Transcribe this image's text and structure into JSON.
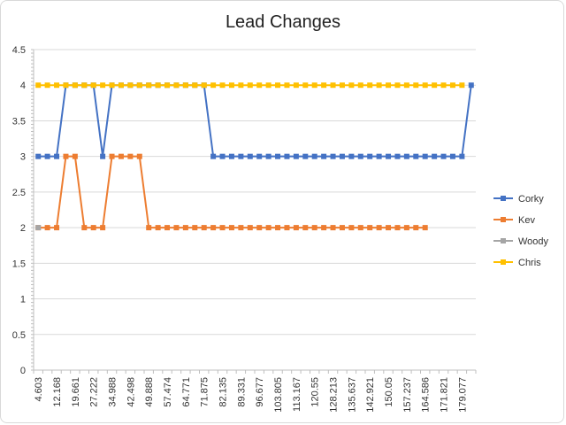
{
  "chart_data": {
    "type": "line",
    "title": "Lead Changes",
    "xlabel": "",
    "ylabel": "",
    "ylim": [
      0,
      4.5
    ],
    "yticks": [
      "0",
      "0.5",
      "1",
      "1.5",
      "2",
      "2.5",
      "3",
      "3.5",
      "4",
      "4.5"
    ],
    "grid": true,
    "legend_position": "right",
    "x_tick_labels": [
      "4.603",
      "12.168",
      "19.661",
      "27.222",
      "34.988",
      "42.498",
      "49.888",
      "57.474",
      "64.771",
      "71.875",
      "82.135",
      "89.331",
      "96.677",
      "103.805",
      "113.167",
      "120.55",
      "128.213",
      "135.637",
      "142.921",
      "150.05",
      "157.237",
      "164.586",
      "171.821",
      "179.077"
    ],
    "series": [
      {
        "name": "Corky",
        "color": "#4472c4",
        "values": [
          3,
          3,
          3,
          4,
          4,
          4,
          4,
          3,
          4,
          4,
          4,
          4,
          4,
          4,
          4,
          4,
          4,
          4,
          4,
          3,
          3,
          3,
          3,
          3,
          3,
          3,
          3,
          3,
          3,
          3,
          3,
          3,
          3,
          3,
          3,
          3,
          3,
          3,
          3,
          3,
          3,
          3,
          3,
          3,
          3,
          3,
          3,
          4
        ]
      },
      {
        "name": "Kev",
        "color": "#ed7d31",
        "values": [
          2,
          2,
          2,
          3,
          3,
          2,
          2,
          2,
          3,
          3,
          3,
          3,
          2,
          2,
          2,
          2,
          2,
          2,
          2,
          2,
          2,
          2,
          2,
          2,
          2,
          2,
          2,
          2,
          2,
          2,
          2,
          2,
          2,
          2,
          2,
          2,
          2,
          2,
          2,
          2,
          2,
          2,
          2,
          null,
          null,
          null,
          null,
          null
        ]
      },
      {
        "name": "Woody",
        "color": "#a5a5a5",
        "values": [
          2,
          null,
          null,
          null,
          null,
          null,
          null,
          null,
          null,
          null,
          null,
          null,
          null,
          null,
          null,
          null,
          null,
          null,
          null,
          null,
          null,
          null,
          null,
          null,
          null,
          null,
          null,
          null,
          null,
          null,
          null,
          null,
          null,
          null,
          null,
          null,
          null,
          null,
          null,
          null,
          null,
          null,
          null,
          null,
          null,
          null,
          null,
          null
        ]
      },
      {
        "name": "Chris",
        "color": "#ffc000",
        "values": [
          4,
          4,
          4,
          4,
          4,
          4,
          4,
          4,
          4,
          4,
          4,
          4,
          4,
          4,
          4,
          4,
          4,
          4,
          4,
          4,
          4,
          4,
          4,
          4,
          4,
          4,
          4,
          4,
          4,
          4,
          4,
          4,
          4,
          4,
          4,
          4,
          4,
          4,
          4,
          4,
          4,
          4,
          4,
          4,
          4,
          4,
          4,
          null
        ]
      }
    ]
  }
}
